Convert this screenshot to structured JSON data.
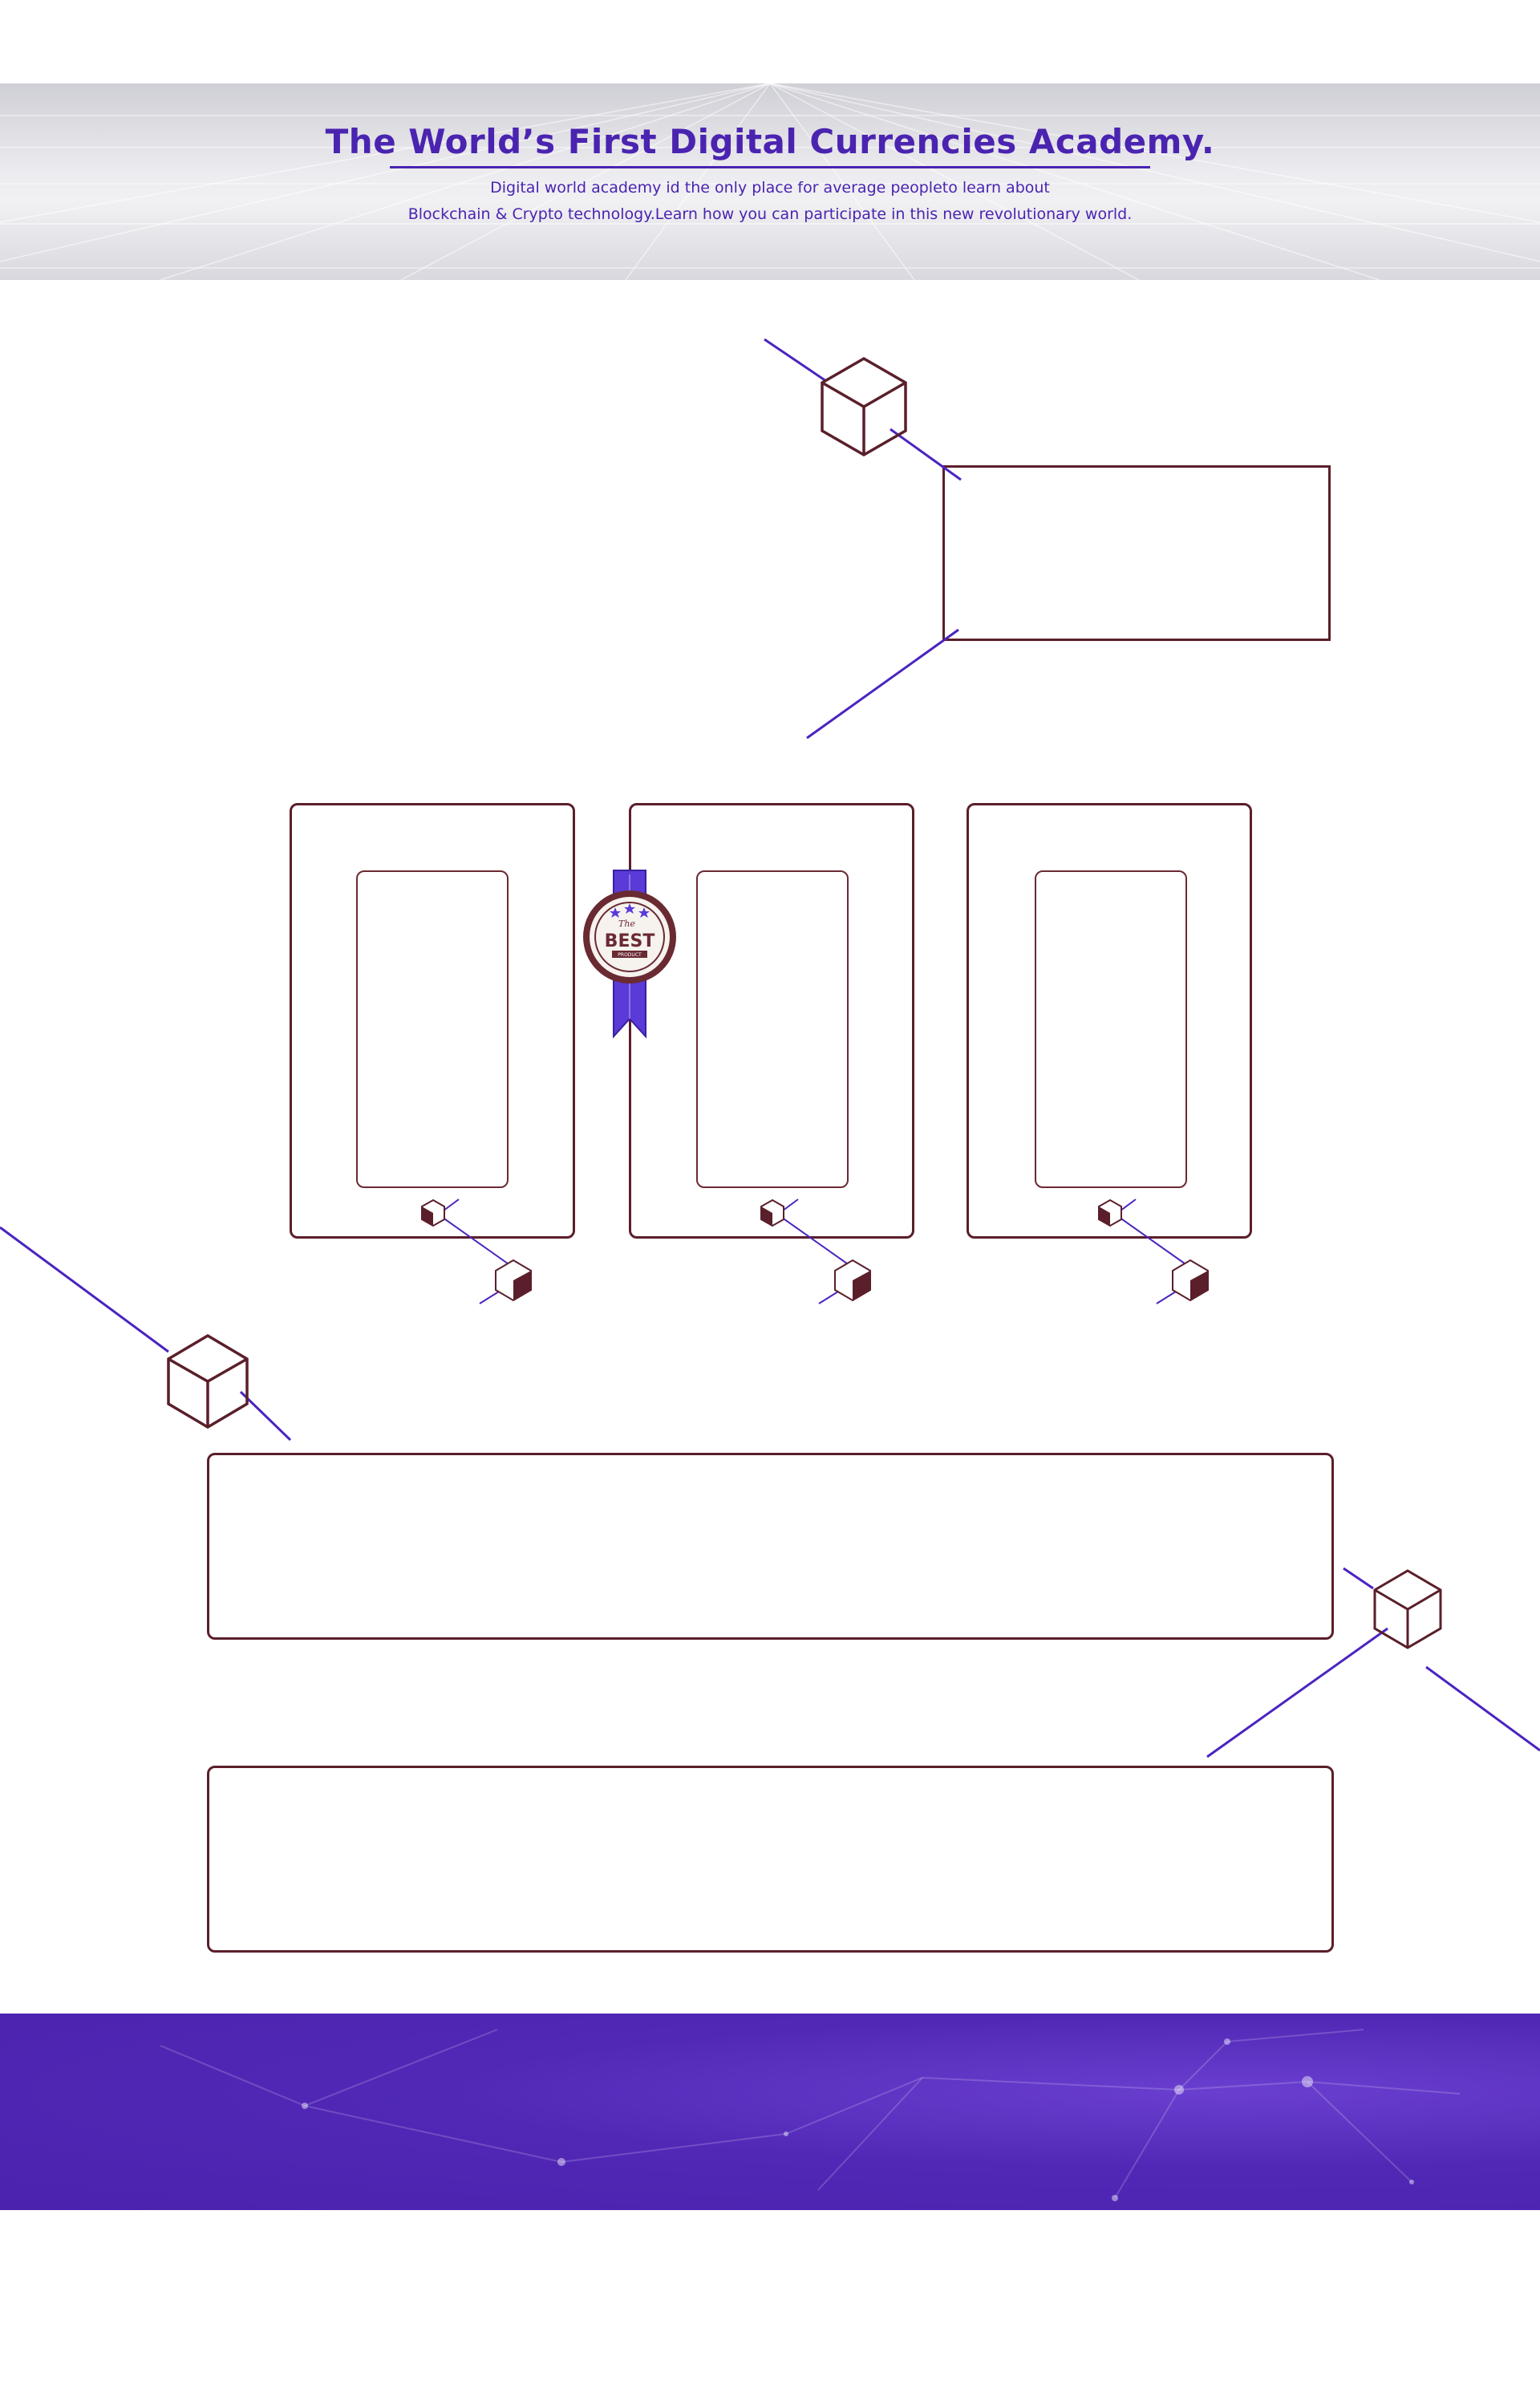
{
  "hero": {
    "title": "The World’s First Digital Currencies Academy.",
    "subtitle_line1": "Digital world academy id the only place for average peopleto learn about",
    "subtitle_line2": "Blockchain & Crypto technology.Learn how you can participate in this new revolutionary world."
  },
  "badge": {
    "top_text": "The",
    "main_text": "BEST",
    "bottom_text": "PRODUCT"
  },
  "colors": {
    "accent_purple": "#4a24b0",
    "outline_maroon": "#5a1f2a",
    "footer_purple": "#5128b6",
    "line_purple": "#4a24c0"
  },
  "icons": {
    "cube": "cube-icon",
    "badge": "best-badge-icon"
  }
}
